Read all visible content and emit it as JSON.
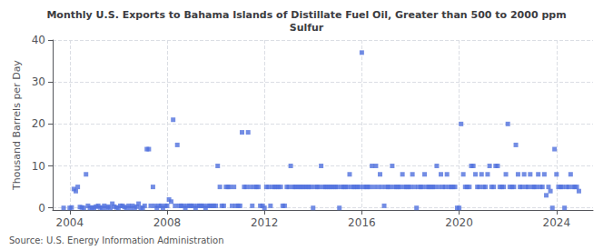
{
  "chart_data": {
    "type": "scatter",
    "title": "Monthly U.S. Exports to Bahama Islands of Distillate Fuel Oil, Greater than 500 to 2000 ppm\nSulfur",
    "ylabel": "Thousand Barrels per Day",
    "annotations": [
      "Source: U.S. Energy Information Administration"
    ],
    "marker": "square",
    "grid": true,
    "xlim": [
      2003.3,
      2025.5
    ],
    "xticks": [
      2004,
      2008,
      2012,
      2016,
      2020,
      2024
    ],
    "ylim": [
      -0.5,
      40
    ],
    "yticks": [
      0,
      10,
      20,
      30,
      40
    ],
    "x": [
      2003.75,
      2004.0,
      2004.08,
      2004.17,
      2004.25,
      2004.33,
      2004.42,
      2004.5,
      2004.58,
      2004.67,
      2004.75,
      2004.83,
      2004.92,
      2005.0,
      2005.08,
      2005.17,
      2005.25,
      2005.33,
      2005.42,
      2005.5,
      2005.58,
      2005.67,
      2005.75,
      2005.83,
      2005.92,
      2006.0,
      2006.08,
      2006.17,
      2006.25,
      2006.33,
      2006.42,
      2006.5,
      2006.58,
      2006.67,
      2006.75,
      2006.83,
      2006.92,
      2007.0,
      2007.08,
      2007.17,
      2007.25,
      2007.33,
      2007.42,
      2007.5,
      2007.58,
      2007.67,
      2007.75,
      2007.83,
      2007.92,
      2008.0,
      2008.08,
      2008.17,
      2008.25,
      2008.33,
      2008.42,
      2008.5,
      2008.58,
      2008.67,
      2008.75,
      2008.83,
      2008.92,
      2009.0,
      2009.08,
      2009.17,
      2009.25,
      2009.33,
      2009.42,
      2009.5,
      2009.58,
      2009.67,
      2009.75,
      2009.83,
      2009.92,
      2010.0,
      2010.08,
      2010.17,
      2010.25,
      2010.33,
      2010.42,
      2010.5,
      2010.58,
      2010.67,
      2010.75,
      2010.83,
      2010.92,
      2011.0,
      2011.08,
      2011.17,
      2011.25,
      2011.33,
      2011.42,
      2011.5,
      2011.58,
      2011.67,
      2011.75,
      2011.83,
      2011.92,
      2012.0,
      2012.08,
      2012.17,
      2012.25,
      2012.33,
      2012.42,
      2012.5,
      2012.58,
      2012.67,
      2012.75,
      2012.83,
      2012.92,
      2013.0,
      2013.08,
      2013.17,
      2013.25,
      2013.33,
      2013.42,
      2013.5,
      2013.58,
      2013.67,
      2013.75,
      2013.83,
      2013.92,
      2014.0,
      2014.08,
      2014.17,
      2014.25,
      2014.33,
      2014.42,
      2014.5,
      2014.58,
      2014.67,
      2014.75,
      2014.83,
      2014.92,
      2015.0,
      2015.08,
      2015.17,
      2015.25,
      2015.33,
      2015.42,
      2015.5,
      2015.58,
      2015.67,
      2015.75,
      2015.83,
      2015.92,
      2016.0,
      2016.08,
      2016.17,
      2016.25,
      2016.33,
      2016.42,
      2016.5,
      2016.58,
      2016.67,
      2016.75,
      2016.83,
      2016.92,
      2017.0,
      2017.08,
      2017.17,
      2017.25,
      2017.33,
      2017.42,
      2017.5,
      2017.58,
      2017.67,
      2017.75,
      2017.83,
      2017.92,
      2018.0,
      2018.08,
      2018.17,
      2018.25,
      2018.33,
      2018.42,
      2018.5,
      2018.58,
      2018.67,
      2018.75,
      2018.83,
      2018.92,
      2019.0,
      2019.08,
      2019.17,
      2019.25,
      2019.33,
      2019.42,
      2019.5,
      2019.58,
      2019.67,
      2019.75,
      2019.83,
      2019.92,
      2020.0,
      2020.08,
      2020.17,
      2020.25,
      2020.33,
      2020.42,
      2020.5,
      2020.58,
      2020.67,
      2020.75,
      2020.83,
      2020.92,
      2021.0,
      2021.08,
      2021.17,
      2021.25,
      2021.33,
      2021.42,
      2021.5,
      2021.58,
      2021.67,
      2021.75,
      2021.83,
      2021.92,
      2022.0,
      2022.08,
      2022.17,
      2022.25,
      2022.33,
      2022.42,
      2022.5,
      2022.58,
      2022.67,
      2022.75,
      2022.83,
      2022.92,
      2023.0,
      2023.08,
      2023.17,
      2023.25,
      2023.33,
      2023.42,
      2023.5,
      2023.58,
      2023.67,
      2023.75,
      2023.83,
      2023.92,
      2024.0,
      2024.08,
      2024.17,
      2024.25,
      2024.33,
      2024.42,
      2024.5,
      2024.58,
      2024.67,
      2024.75,
      2024.83,
      2024.92
    ],
    "values": [
      0.0,
      0.0,
      0.1,
      4.5,
      4.0,
      5.0,
      0.2,
      0.1,
      0.0,
      8.0,
      0.5,
      0.0,
      0.1,
      0.0,
      0.3,
      0.5,
      0.1,
      0.0,
      0.5,
      0.0,
      0.3,
      0.0,
      1.0,
      0.3,
      0.1,
      0.0,
      0.5,
      0.5,
      0.2,
      0.0,
      0.5,
      0.0,
      0.5,
      0.0,
      0.3,
      1.0,
      0.0,
      0.0,
      0.5,
      14.0,
      14.0,
      0.5,
      5.0,
      0.5,
      0.0,
      0.5,
      0.5,
      0.0,
      0.5,
      0.5,
      2.0,
      1.5,
      21.0,
      0.5,
      15.0,
      0.5,
      0.5,
      0.5,
      0.0,
      0.5,
      0.5,
      0.5,
      0.5,
      0.0,
      0.5,
      0.5,
      0.5,
      0.5,
      0.0,
      0.5,
      0.5,
      0.5,
      0.5,
      0.5,
      10.0,
      5.0,
      0.5,
      0.5,
      5.0,
      5.0,
      5.0,
      0.5,
      5.0,
      0.5,
      0.5,
      0.5,
      18.0,
      5.0,
      5.0,
      18.0,
      5.0,
      0.5,
      5.0,
      5.0,
      5.0,
      0.5,
      0.5,
      0.0,
      5.0,
      5.0,
      0.5,
      5.0,
      5.0,
      5.0,
      5.0,
      5.0,
      0.5,
      0.5,
      5.0,
      5.0,
      10.0,
      5.0,
      5.0,
      5.0,
      5.0,
      5.0,
      5.0,
      5.0,
      5.0,
      5.0,
      5.0,
      0.0,
      5.0,
      5.0,
      5.0,
      10.0,
      5.0,
      5.0,
      5.0,
      5.0,
      5.0,
      5.0,
      5.0,
      5.0,
      0.0,
      5.0,
      5.0,
      5.0,
      5.0,
      8.0,
      5.0,
      5.0,
      5.0,
      5.0,
      5.0,
      37.0,
      5.0,
      5.0,
      5.0,
      5.0,
      10.0,
      5.0,
      10.0,
      5.0,
      8.0,
      5.0,
      0.5,
      5.0,
      5.0,
      5.0,
      10.0,
      5.0,
      5.0,
      5.0,
      5.0,
      8.0,
      5.0,
      5.0,
      5.0,
      5.0,
      8.0,
      5.0,
      0.0,
      5.0,
      5.0,
      5.0,
      8.0,
      5.0,
      5.0,
      5.0,
      5.0,
      5.0,
      10.0,
      5.0,
      8.0,
      5.0,
      5.0,
      8.0,
      5.0,
      5.0,
      5.0,
      5.0,
      0.0,
      0.0,
      20.0,
      8.0,
      5.0,
      5.0,
      5.0,
      10.0,
      10.0,
      8.0,
      5.0,
      5.0,
      8.0,
      5.0,
      5.0,
      8.0,
      10.0,
      5.0,
      5.0,
      10.0,
      10.0,
      5.0,
      5.0,
      5.0,
      8.0,
      20.0,
      5.0,
      5.0,
      5.0,
      15.0,
      8.0,
      5.0,
      5.0,
      8.0,
      5.0,
      5.0,
      8.0,
      5.0,
      5.0,
      5.0,
      8.0,
      5.0,
      5.0,
      8.0,
      3.0,
      5.0,
      4.0,
      0.0,
      14.0,
      8.0,
      5.0,
      5.0,
      5.0,
      0.0,
      5.0,
      5.0,
      8.0,
      5.0,
      5.0,
      5.0,
      4.0
    ]
  }
}
